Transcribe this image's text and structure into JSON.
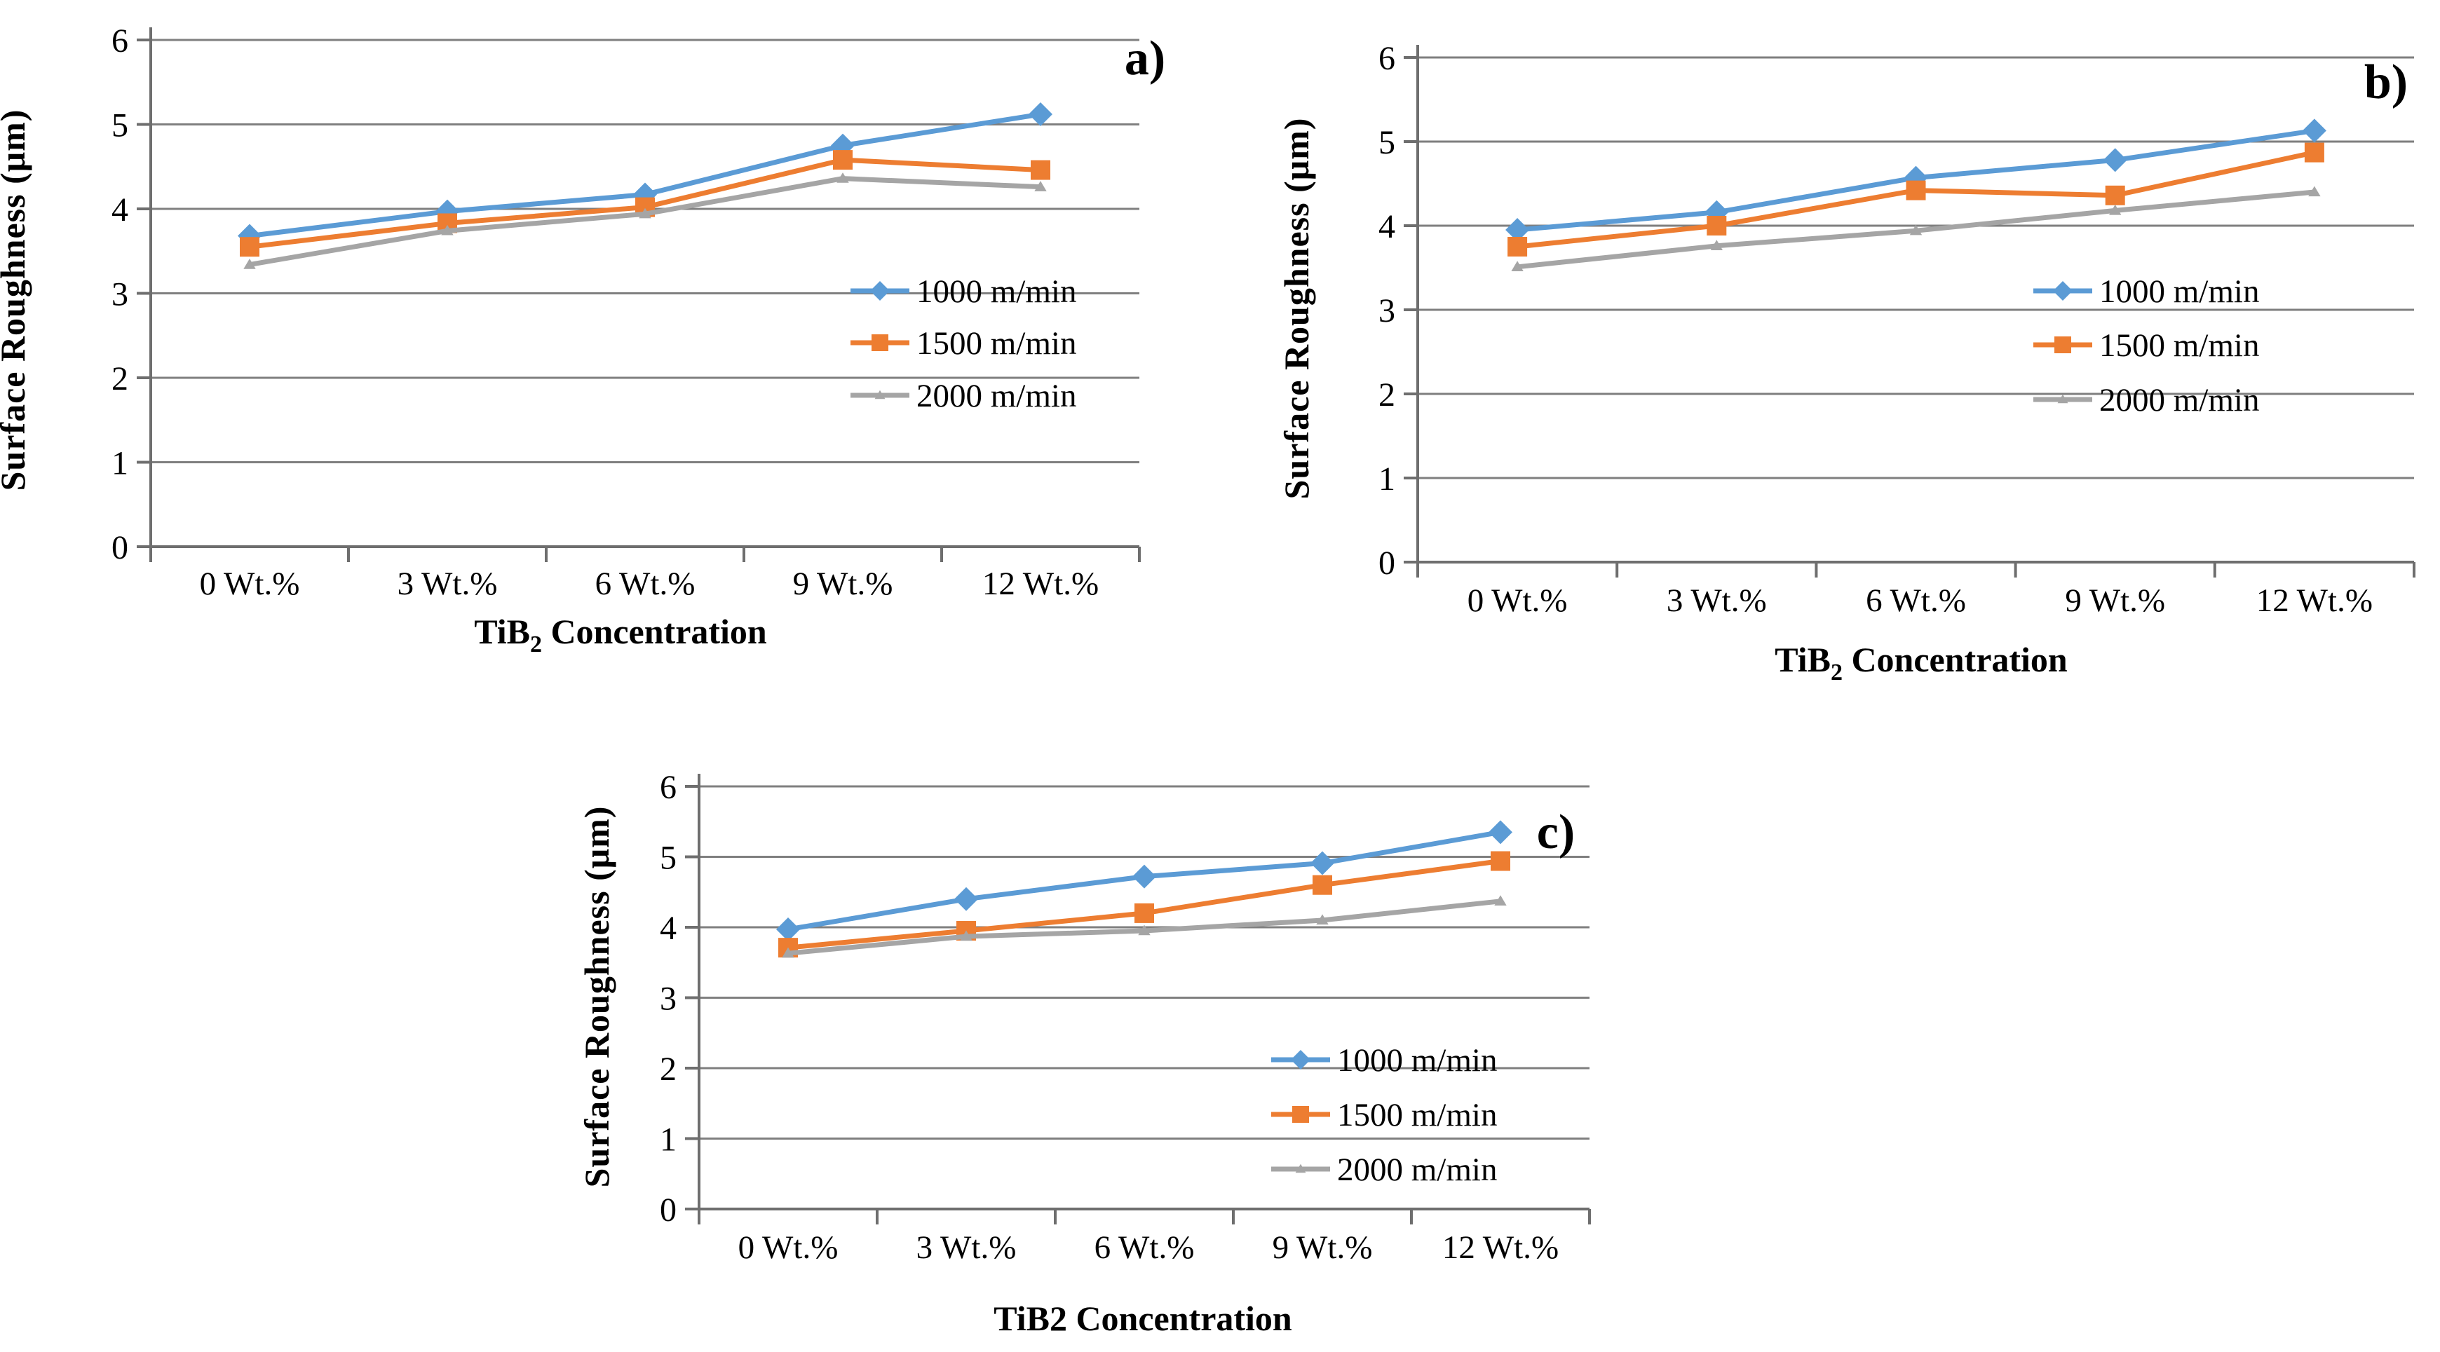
{
  "figure": {
    "background": "#ffffff",
    "panel_labels": [
      "a)",
      "b)",
      "c)"
    ]
  },
  "colors": {
    "series_blue": "#5B9BD5",
    "series_orange": "#ED7D31",
    "series_gray": "#A5A5A5",
    "panel_label_red": "#E01B20",
    "gridline_gray": "#7F7F7F",
    "axis_gray": "#6E6E6E",
    "text_black": "#000000"
  },
  "chart_data": [
    {
      "id": "a",
      "type": "line",
      "panel_label": "a)",
      "xlabel": "TiB2 Concentration",
      "xlabel_parts": {
        "pre": "TiB",
        "sub": "2",
        "post": " Concentration"
      },
      "ylabel": "Surface Roughness (μm)",
      "ylim": [
        0,
        6
      ],
      "yticks": [
        "0",
        "1",
        "2",
        "3",
        "4",
        "5",
        "6"
      ],
      "categories": [
        "0 Wt.%",
        "3 Wt.%",
        "6 Wt.%",
        "9 Wt.%",
        "12 Wt.%"
      ],
      "grid": true,
      "legend_position": "inside-right",
      "series": [
        {
          "name": "1000 m/min",
          "marker": "diamond",
          "color": "#5B9BD5",
          "values": [
            3.68,
            3.97,
            4.17,
            4.75,
            5.12
          ]
        },
        {
          "name": "1500 m/min",
          "marker": "square",
          "color": "#ED7D31",
          "values": [
            3.55,
            3.83,
            4.02,
            4.58,
            4.46
          ]
        },
        {
          "name": "2000 m/min",
          "marker": "triangle",
          "color": "#A5A5A5",
          "values": [
            3.34,
            3.74,
            3.94,
            4.36,
            4.26
          ]
        }
      ]
    },
    {
      "id": "b",
      "type": "line",
      "panel_label": "b)",
      "xlabel": "TiB2 Concentration",
      "xlabel_parts": {
        "pre": "TiB",
        "sub": "2",
        "post": " Concentration"
      },
      "ylabel": "Surface Roughness (μm)",
      "ylim": [
        0,
        6
      ],
      "yticks": [
        "0",
        "1",
        "2",
        "3",
        "4",
        "5",
        "6"
      ],
      "categories": [
        "0 Wt.%",
        "3 Wt.%",
        "6 Wt.%",
        "9 Wt.%",
        "12 Wt.%"
      ],
      "grid": true,
      "legend_position": "inside-right",
      "series": [
        {
          "name": "1000 m/min",
          "marker": "diamond",
          "color": "#5B9BD5",
          "values": [
            3.95,
            4.16,
            4.57,
            4.78,
            5.13
          ]
        },
        {
          "name": "1500 m/min",
          "marker": "square",
          "color": "#ED7D31",
          "values": [
            3.75,
            4.0,
            4.42,
            4.36,
            4.87
          ]
        },
        {
          "name": "2000 m/min",
          "marker": "triangle",
          "color": "#A5A5A5",
          "values": [
            3.51,
            3.76,
            3.94,
            4.18,
            4.4
          ]
        }
      ]
    },
    {
      "id": "c",
      "type": "line",
      "panel_label": "c)",
      "xlabel": "TiB2 Concentration",
      "xlabel_parts": {
        "pre": "TiB2",
        "sub": "",
        "post": " Concentration"
      },
      "ylabel": "Surface Roughness (μm)",
      "ylim": [
        0,
        6
      ],
      "yticks": [
        "0",
        "1",
        "2",
        "3",
        "4",
        "5",
        "6"
      ],
      "categories": [
        "0 Wt.%",
        "3 Wt.%",
        "6 Wt.%",
        "9 Wt.%",
        "12 Wt.%"
      ],
      "grid": true,
      "legend_position": "inside-right",
      "series": [
        {
          "name": "1000 m/min",
          "marker": "diamond",
          "color": "#5B9BD5",
          "values": [
            3.97,
            4.4,
            4.72,
            4.91,
            5.35
          ]
        },
        {
          "name": "1500 m/min",
          "marker": "square",
          "color": "#ED7D31",
          "values": [
            3.71,
            3.95,
            4.2,
            4.6,
            4.94
          ]
        },
        {
          "name": "2000 m/min",
          "marker": "triangle",
          "color": "#A5A5A5",
          "values": [
            3.63,
            3.87,
            3.95,
            4.1,
            4.37
          ]
        }
      ]
    }
  ]
}
